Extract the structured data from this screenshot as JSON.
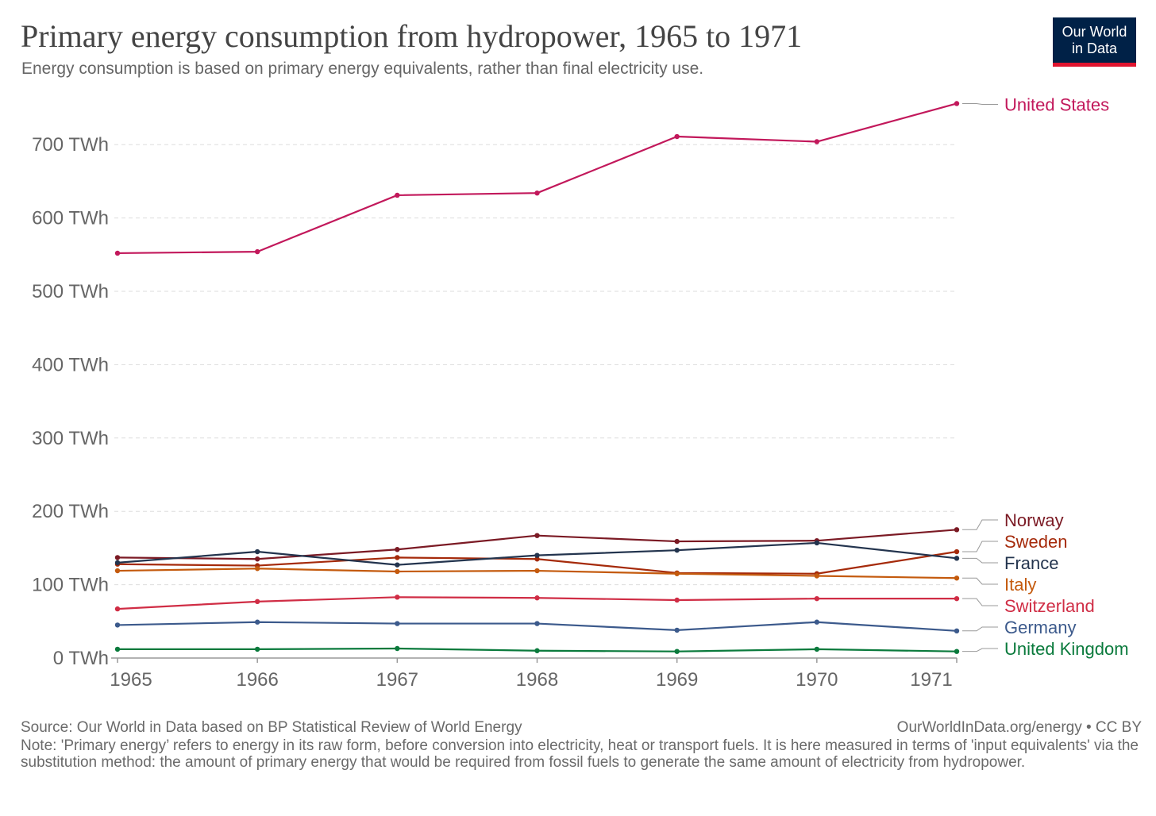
{
  "header": {
    "title": "Primary energy consumption from hydropower, 1965 to 1971",
    "subtitle": "Energy consumption is based on primary energy equivalents, rather than final electricity use."
  },
  "logo": {
    "line1": "Our World",
    "line2": "in Data",
    "bg_color": "#002147",
    "accent_color": "#e0142f"
  },
  "footer": {
    "source": "Source: Our World in Data based on BP Statistical Review of World Energy",
    "link": "OurWorldInData.org/energy • CC BY",
    "note": "Note: 'Primary energy’ refers to energy in its raw form, before conversion into electricity, heat or transport fuels. It is here measured in terms of 'input equivalents' via the substitution method: the amount of primary energy that would be required from fossil fuels to generate the same amount of electricity from hydropower."
  },
  "chart_data": {
    "type": "line",
    "x": [
      1965,
      1966,
      1967,
      1968,
      1969,
      1970,
      1971
    ],
    "ylim": [
      0,
      770
    ],
    "y_ticks": [
      0,
      100,
      200,
      300,
      400,
      500,
      600,
      700
    ],
    "y_tick_labels": [
      "0 TWh",
      "100 TWh",
      "200 TWh",
      "300 TWh",
      "400 TWh",
      "500 TWh",
      "600 TWh",
      "700 TWh"
    ],
    "x_tick_labels": [
      "1965",
      "1966",
      "1967",
      "1968",
      "1969",
      "1970",
      "1971"
    ],
    "grid": "horizontal-dashed",
    "legend": "right-end-labels",
    "series": [
      {
        "name": "United States",
        "color": "#c2185b",
        "values": [
          552,
          554,
          631,
          634,
          711,
          704,
          756
        ]
      },
      {
        "name": "Norway",
        "color": "#7b1a24",
        "values": [
          137,
          135,
          148,
          167,
          159,
          160,
          175
        ]
      },
      {
        "name": "Sweden",
        "color": "#a52a0a",
        "values": [
          128,
          126,
          137,
          135,
          116,
          115,
          145
        ]
      },
      {
        "name": "France",
        "color": "#23344e",
        "values": [
          130,
          145,
          127,
          140,
          147,
          157,
          136
        ]
      },
      {
        "name": "Italy",
        "color": "#c45a0d",
        "values": [
          119,
          122,
          118,
          119,
          115,
          112,
          109
        ]
      },
      {
        "name": "Switzerland",
        "color": "#d02d45",
        "values": [
          67,
          77,
          83,
          82,
          79,
          81,
          81
        ]
      },
      {
        "name": "Germany",
        "color": "#3c5a8c",
        "values": [
          45,
          49,
          47,
          47,
          38,
          49,
          37
        ]
      },
      {
        "name": "United Kingdom",
        "color": "#0a7a3c",
        "values": [
          12,
          12,
          13,
          10,
          9,
          12,
          9
        ]
      }
    ]
  }
}
